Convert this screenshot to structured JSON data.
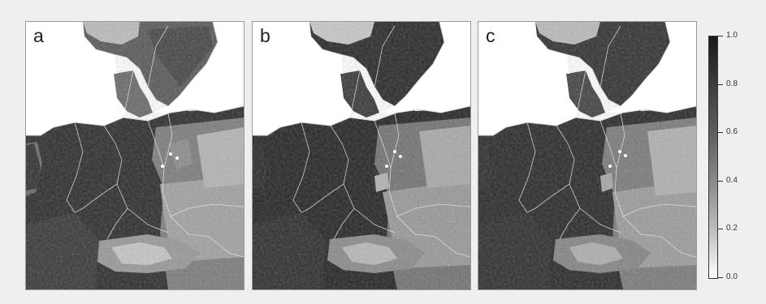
{
  "panels": [
    {
      "letter": "a"
    },
    {
      "letter": "b"
    },
    {
      "letter": "c"
    }
  ],
  "legend": {
    "scale": "grayscale, low values white, high values black",
    "min": 0.0,
    "max": 1.0,
    "ticks": [
      "1.0",
      "0.8",
      "0.6",
      "0.4",
      "0.2",
      "0.0"
    ]
  }
}
